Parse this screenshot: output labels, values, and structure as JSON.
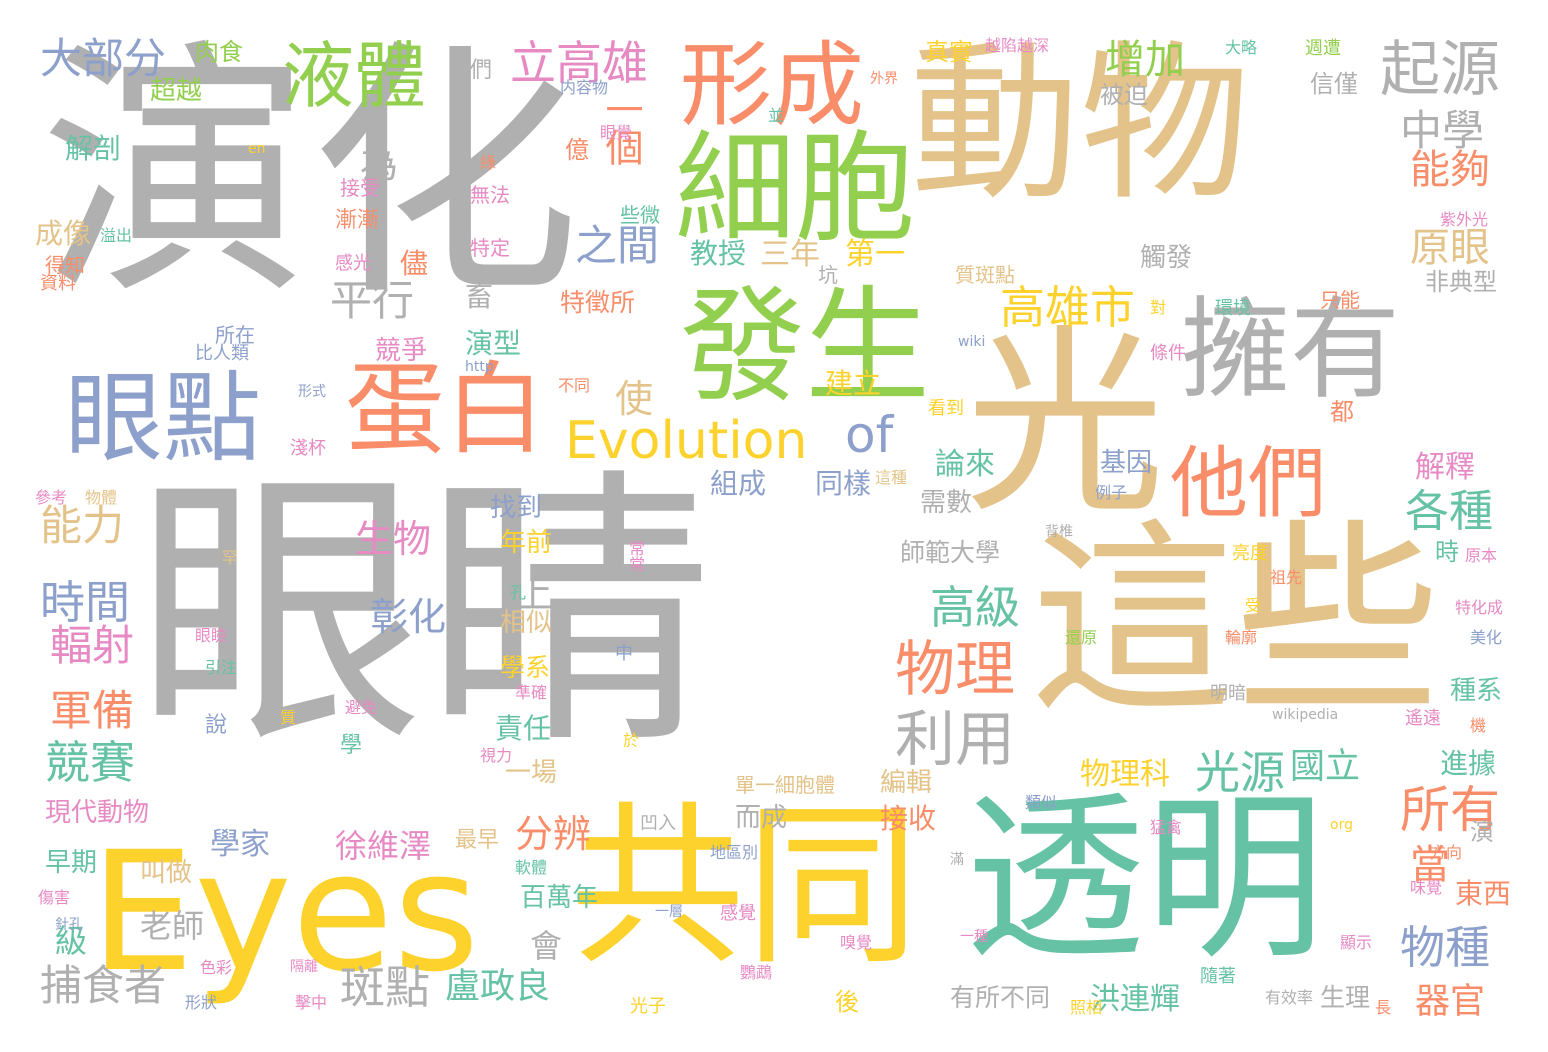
{
  "palette": {
    "gray": "#b0b0b0",
    "tan": "#e3c38a",
    "green": "#93cf4f",
    "yellow": "#fdd22c",
    "orange": "#f98d6a",
    "teal": "#66c2a5",
    "blue": "#8da0cb",
    "pink": "#e78ac3"
  },
  "words": [
    {
      "text": "眼睛",
      "color": "gray"
    },
    {
      "text": "演化",
      "color": "gray"
    },
    {
      "text": "動物",
      "color": "tan"
    },
    {
      "text": "光",
      "color": "tan"
    },
    {
      "text": "這些",
      "color": "tan"
    },
    {
      "text": "透明",
      "color": "teal"
    },
    {
      "text": "共同",
      "color": "yellow"
    },
    {
      "text": "Eyes",
      "color": "yellow"
    },
    {
      "text": "擁有",
      "color": "gray"
    },
    {
      "text": "發生",
      "color": "green"
    },
    {
      "text": "細胞",
      "color": "green"
    },
    {
      "text": "形成",
      "color": "orange"
    },
    {
      "text": "蛋白",
      "color": "orange"
    },
    {
      "text": "眼點",
      "color": "blue"
    },
    {
      "text": "他們",
      "color": "orange"
    },
    {
      "text": "液體",
      "color": "green"
    },
    {
      "text": "Evolution",
      "color": "yellow"
    },
    {
      "text": "of",
      "color": "blue"
    },
    {
      "text": "起源",
      "color": "gray"
    },
    {
      "text": "立高雄",
      "color": "pink"
    },
    {
      "text": "大部分",
      "color": "blue"
    },
    {
      "text": "高雄市",
      "color": "yellow"
    },
    {
      "text": "物理",
      "color": "orange"
    },
    {
      "text": "利用",
      "color": "gray"
    },
    {
      "text": "增加",
      "color": "green"
    },
    {
      "text": "中學",
      "color": "gray"
    },
    {
      "text": "能夠",
      "color": "orange"
    },
    {
      "text": "原眼",
      "color": "tan"
    },
    {
      "text": "各種",
      "color": "teal"
    },
    {
      "text": "高級",
      "color": "teal"
    },
    {
      "text": "光源",
      "color": "teal"
    },
    {
      "text": "所有",
      "color": "orange"
    },
    {
      "text": "物種",
      "color": "blue"
    },
    {
      "text": "一個",
      "color": "orange"
    },
    {
      "text": "之間",
      "color": "blue"
    },
    {
      "text": "平行",
      "color": "gray"
    },
    {
      "text": "能力",
      "color": "tan"
    },
    {
      "text": "時間",
      "color": "blue"
    },
    {
      "text": "輻射",
      "color": "pink"
    },
    {
      "text": "軍備",
      "color": "orange"
    },
    {
      "text": "競賽",
      "color": "teal"
    },
    {
      "text": "捕食者",
      "color": "gray"
    },
    {
      "text": "斑點",
      "color": "gray"
    },
    {
      "text": "分辨",
      "color": "orange"
    },
    {
      "text": "徐維澤",
      "color": "pink"
    },
    {
      "text": "盧政良",
      "color": "teal"
    },
    {
      "text": "洪連輝",
      "color": "teal"
    },
    {
      "text": "國立",
      "color": "teal"
    },
    {
      "text": "器官",
      "color": "orange"
    },
    {
      "text": "物理科",
      "color": "yellow"
    },
    {
      "text": "使",
      "color": "tan"
    },
    {
      "text": "為",
      "color": "gray"
    },
    {
      "text": "教授",
      "color": "teal"
    },
    {
      "text": "三年",
      "color": "tan"
    },
    {
      "text": "第一",
      "color": "yellow"
    },
    {
      "text": "生物",
      "color": "pink"
    },
    {
      "text": "彰化",
      "color": "blue"
    },
    {
      "text": "上",
      "color": "gray"
    },
    {
      "text": "論來",
      "color": "teal"
    },
    {
      "text": "需數",
      "color": "gray"
    },
    {
      "text": "解釋",
      "color": "pink"
    },
    {
      "text": "基因",
      "color": "blue"
    },
    {
      "text": "組成",
      "color": "blue"
    },
    {
      "text": "同樣",
      "color": "blue"
    },
    {
      "text": "師範大學",
      "color": "gray"
    },
    {
      "text": "非典型",
      "color": "gray"
    },
    {
      "text": "觸發",
      "color": "gray"
    },
    {
      "text": "肉食",
      "color": "green"
    },
    {
      "text": "超越",
      "color": "green"
    },
    {
      "text": "解剖",
      "color": "teal"
    },
    {
      "text": "成像",
      "color": "tan"
    },
    {
      "text": "得知",
      "color": "orange"
    },
    {
      "text": "資料",
      "color": "orange"
    },
    {
      "text": "被迫",
      "color": "gray"
    },
    {
      "text": "信僅",
      "color": "gray"
    },
    {
      "text": "演型",
      "color": "teal"
    },
    {
      "text": "競爭",
      "color": "pink"
    },
    {
      "text": "特徵所",
      "color": "orange"
    },
    {
      "text": "現代動物",
      "color": "pink"
    },
    {
      "text": "學家",
      "color": "blue"
    },
    {
      "text": "早期",
      "color": "teal"
    },
    {
      "text": "叫做",
      "color": "tan"
    },
    {
      "text": "老師",
      "color": "gray"
    },
    {
      "text": "級",
      "color": "teal"
    },
    {
      "text": "找到",
      "color": "blue"
    },
    {
      "text": "年前",
      "color": "yellow"
    },
    {
      "text": "相似",
      "color": "tan"
    },
    {
      "text": "學系",
      "color": "yellow"
    },
    {
      "text": "責任",
      "color": "teal"
    },
    {
      "text": "一場",
      "color": "tan"
    },
    {
      "text": "百萬年",
      "color": "teal"
    },
    {
      "text": "會",
      "color": "gray"
    },
    {
      "text": "進據",
      "color": "teal"
    },
    {
      "text": "當",
      "color": "orange"
    },
    {
      "text": "東西",
      "color": "orange"
    },
    {
      "text": "接收",
      "color": "orange"
    },
    {
      "text": "而成",
      "color": "gray"
    },
    {
      "text": "編輯",
      "color": "tan"
    },
    {
      "text": "有所不同",
      "color": "gray"
    },
    {
      "text": "生理",
      "color": "gray"
    },
    {
      "text": "種系",
      "color": "teal"
    },
    {
      "text": "時",
      "color": "teal"
    },
    {
      "text": "真實",
      "color": "yellow"
    },
    {
      "text": "越陷越深",
      "color": "pink"
    },
    {
      "text": "大略",
      "color": "teal"
    },
    {
      "text": "週遭",
      "color": "green"
    },
    {
      "text": "外界",
      "color": "orange"
    },
    {
      "text": "内容物",
      "color": "blue"
    },
    {
      "text": "眼覺",
      "color": "pink"
    },
    {
      "text": "億",
      "color": "orange"
    },
    {
      "text": "無法",
      "color": "pink"
    },
    {
      "text": "接受",
      "color": "pink"
    },
    {
      "text": "漸漸",
      "color": "orange"
    },
    {
      "text": "些微",
      "color": "teal"
    },
    {
      "text": "特定",
      "color": "pink"
    },
    {
      "text": "感光",
      "color": "pink"
    },
    {
      "text": "儘",
      "color": "orange"
    },
    {
      "text": "畜",
      "color": "gray"
    },
    {
      "text": "坑",
      "color": "gray"
    },
    {
      "text": "質斑點",
      "color": "tan"
    },
    {
      "text": "對",
      "color": "yellow"
    },
    {
      "text": "環境",
      "color": "teal"
    },
    {
      "text": "只能",
      "color": "orange"
    },
    {
      "text": "紫外光",
      "color": "pink"
    },
    {
      "text": "所在",
      "color": "blue"
    },
    {
      "text": "比人類",
      "color": "blue"
    },
    {
      "text": "形式",
      "color": "blue"
    },
    {
      "text": "淺杯",
      "color": "pink"
    },
    {
      "text": "參考",
      "color": "pink"
    },
    {
      "text": "物體",
      "color": "tan"
    },
    {
      "text": "建立",
      "color": "yellow"
    },
    {
      "text": "看到",
      "color": "yellow"
    },
    {
      "text": "不同",
      "color": "orange"
    },
    {
      "text": "條件",
      "color": "pink"
    },
    {
      "text": "都",
      "color": "orange"
    },
    {
      "text": "這種",
      "color": "tan"
    },
    {
      "text": "例子",
      "color": "blue"
    },
    {
      "text": "背椎",
      "color": "gray"
    },
    {
      "text": "亮度",
      "color": "yellow"
    },
    {
      "text": "祖先",
      "color": "orange"
    },
    {
      "text": "原本",
      "color": "pink"
    },
    {
      "text": "特化成",
      "color": "pink"
    },
    {
      "text": "美化",
      "color": "blue"
    },
    {
      "text": "明暗",
      "color": "gray"
    },
    {
      "text": "遙遠",
      "color": "pink"
    },
    {
      "text": "機",
      "color": "orange"
    },
    {
      "text": "還原",
      "color": "green"
    },
    {
      "text": "輪廓",
      "color": "orange"
    },
    {
      "text": "受",
      "color": "yellow"
    },
    {
      "text": "類似",
      "color": "blue"
    },
    {
      "text": "猛禽",
      "color": "pink"
    },
    {
      "text": "方向",
      "color": "orange"
    },
    {
      "text": "演",
      "color": "gray"
    },
    {
      "text": "味覺",
      "color": "pink"
    },
    {
      "text": "顯示",
      "color": "pink"
    },
    {
      "text": "隨著",
      "color": "teal"
    },
    {
      "text": "有效率",
      "color": "gray"
    },
    {
      "text": "長",
      "color": "orange"
    },
    {
      "text": "照相",
      "color": "yellow"
    },
    {
      "text": "最早",
      "color": "tan"
    },
    {
      "text": "凹入",
      "color": "gray"
    },
    {
      "text": "單一細胞體",
      "color": "tan"
    },
    {
      "text": "地區別",
      "color": "blue"
    },
    {
      "text": "軟體",
      "color": "teal"
    },
    {
      "text": "一層",
      "color": "blue"
    },
    {
      "text": "感覺",
      "color": "pink"
    },
    {
      "text": "一種",
      "color": "pink"
    },
    {
      "text": "嗅覺",
      "color": "pink"
    },
    {
      "text": "鸚鵡",
      "color": "pink"
    },
    {
      "text": "後",
      "color": "yellow"
    },
    {
      "text": "光子",
      "color": "yellow"
    },
    {
      "text": "傷害",
      "color": "pink"
    },
    {
      "text": "針孔",
      "color": "blue"
    },
    {
      "text": "色彩",
      "color": "pink"
    },
    {
      "text": "形狀",
      "color": "blue"
    },
    {
      "text": "隔離",
      "color": "pink"
    },
    {
      "text": "擊中",
      "color": "pink"
    },
    {
      "text": "罕",
      "color": "tan"
    },
    {
      "text": "眼瞼",
      "color": "pink"
    },
    {
      "text": "引注",
      "color": "teal"
    },
    {
      "text": "說",
      "color": "blue"
    },
    {
      "text": "質",
      "color": "yellow"
    },
    {
      "text": "避免",
      "color": "pink"
    },
    {
      "text": "學",
      "color": "teal"
    },
    {
      "text": "準確",
      "color": "pink"
    },
    {
      "text": "視力",
      "color": "pink"
    },
    {
      "text": "孔",
      "color": "teal"
    },
    {
      "text": "常常",
      "color": "pink"
    },
    {
      "text": "中",
      "color": "blue"
    },
    {
      "text": "於",
      "color": "yellow"
    },
    {
      "text": "溢出",
      "color": "teal"
    },
    {
      "text": "們",
      "color": "gray"
    },
    {
      "text": "並",
      "color": "teal"
    },
    {
      "text": "綠",
      "color": "orange"
    },
    {
      "text": "en",
      "color": "yellow"
    },
    {
      "text": "http",
      "color": "blue"
    },
    {
      "text": "wiki",
      "color": "blue"
    },
    {
      "text": "wikipedia",
      "color": "gray"
    },
    {
      "text": "org",
      "color": "yellow"
    },
    {
      "text": "滿",
      "color": "gray"
    }
  ]
}
